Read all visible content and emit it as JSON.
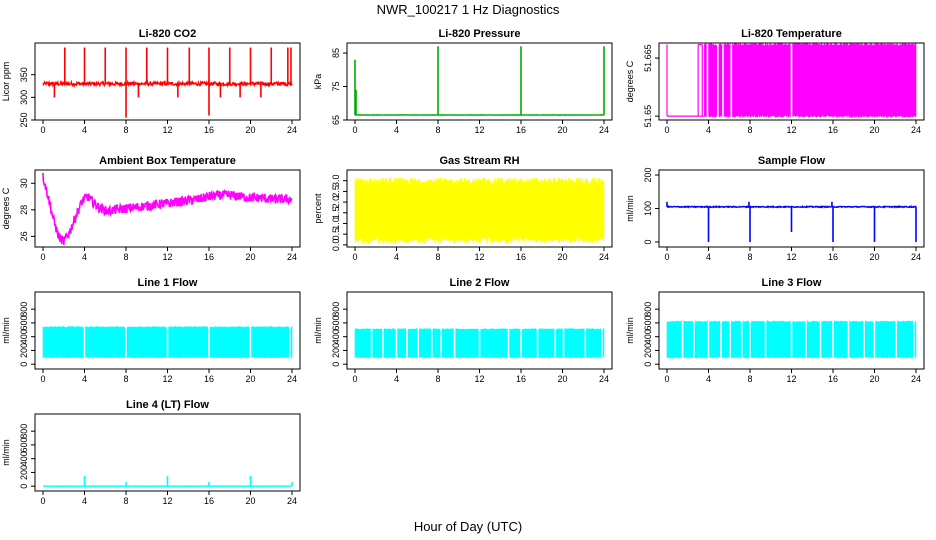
{
  "figure": {
    "title": "NWR_100217  1 Hz Diagnostics",
    "xlabel": "Hour of Day (UTC)"
  },
  "chart_data": [
    {
      "id": "p1",
      "type": "line",
      "title": "Li-820 CO2",
      "ylabel": "Licor ppm",
      "color": "#ff0000",
      "xlim": [
        0,
        24
      ],
      "ylim": [
        250,
        420
      ],
      "xticks": [
        0,
        4,
        8,
        12,
        16,
        20,
        24
      ],
      "yticks": [
        250,
        300,
        350
      ],
      "series": [
        {
          "baseline": 330,
          "noise": 8,
          "spikes": [
            [
              2.1,
              410
            ],
            [
              4.0,
              410
            ],
            [
              6.0,
              410
            ],
            [
              8.0,
              255
            ],
            [
              8.0,
              410
            ],
            [
              10.0,
              410
            ],
            [
              12.0,
              410
            ],
            [
              14.1,
              410
            ],
            [
              16.0,
              260
            ],
            [
              16.0,
              410
            ],
            [
              18.0,
              410
            ],
            [
              20.0,
              410
            ],
            [
              22.0,
              410
            ],
            [
              23.6,
              410
            ],
            [
              23.9,
              410
            ],
            [
              1.1,
              300
            ],
            [
              9.2,
              300
            ],
            [
              13.0,
              300
            ],
            [
              17.1,
              300
            ],
            [
              19.0,
              300
            ],
            [
              21.0,
              300
            ]
          ]
        }
      ]
    },
    {
      "id": "p2",
      "type": "line",
      "title": "Li-820 Pressure",
      "ylabel": "kPa",
      "color": "#00aa00",
      "xlim": [
        0,
        24
      ],
      "ylim": [
        65,
        88
      ],
      "xticks": [
        0,
        4,
        8,
        12,
        16,
        20,
        24
      ],
      "yticks": [
        65,
        75,
        85
      ],
      "series": [
        {
          "baseline": 66.5,
          "noise": 0.1,
          "spikes": [
            [
              0.0,
              83
            ],
            [
              0.1,
              74
            ],
            [
              8.0,
              87
            ],
            [
              16.0,
              87
            ],
            [
              24.0,
              87
            ]
          ]
        }
      ]
    },
    {
      "id": "p3",
      "type": "area",
      "title": "Li-820 Temperature",
      "ylabel": "degrees C",
      "color": "#ff00ff",
      "xlim": [
        0,
        24
      ],
      "ylim": [
        51.649,
        51.6689
      ],
      "xticks": [
        0,
        4,
        8,
        12,
        16,
        20,
        24
      ],
      "yticks": [
        51.65,
        51.665
      ],
      "series": [
        {
          "low": 51.65,
          "high": 51.6685,
          "fill_from": 3.6,
          "early_lines": [
            0.0,
            3.0,
            3.4
          ],
          "gaps": [
            3.9,
            4.9,
            5.4,
            6.2,
            12.0
          ]
        }
      ]
    },
    {
      "id": "p4",
      "type": "line",
      "title": "Ambient Box Temperature",
      "ylabel": "degrees C",
      "color": "#ff00ff",
      "xlim": [
        0,
        24
      ],
      "ylim": [
        25.2,
        31
      ],
      "xticks": [
        0,
        4,
        8,
        12,
        16,
        20,
        24
      ],
      "yticks": [
        26,
        28,
        30
      ],
      "series": [
        {
          "points": [
            [
              0,
              30.5
            ],
            [
              0.5,
              29.0
            ],
            [
              1.0,
              27.3
            ],
            [
              1.5,
              26.0
            ],
            [
              2.0,
              25.6
            ],
            [
              2.6,
              26.4
            ],
            [
              3.2,
              27.6
            ],
            [
              3.8,
              28.7
            ],
            [
              4.3,
              29.0
            ],
            [
              4.8,
              28.6
            ],
            [
              5.5,
              28.1
            ],
            [
              6.2,
              27.9
            ],
            [
              7.0,
              28.0
            ],
            [
              8.0,
              28.1
            ],
            [
              9.0,
              28.2
            ],
            [
              10.0,
              28.3
            ],
            [
              11.0,
              28.4
            ],
            [
              12.0,
              28.5
            ],
            [
              13.0,
              28.6
            ],
            [
              14.0,
              28.7
            ],
            [
              15.0,
              28.8
            ],
            [
              16.0,
              29.0
            ],
            [
              17.0,
              29.1
            ],
            [
              18.0,
              29.1
            ],
            [
              19.0,
              29.0
            ],
            [
              20.0,
              28.9
            ],
            [
              21.0,
              28.9
            ],
            [
              22.0,
              28.8
            ],
            [
              23.0,
              28.8
            ],
            [
              24.0,
              28.8
            ]
          ],
          "noise": 0.35
        }
      ]
    },
    {
      "id": "p5",
      "type": "area",
      "title": "Gas Stream RH",
      "ylabel": "percent",
      "color": "#ffff00",
      "xlim": [
        0,
        24
      ],
      "ylim": [
        -0.1,
        3.5
      ],
      "xticks": [
        0,
        4,
        8,
        12,
        16,
        20,
        24
      ],
      "yticks": [
        0.0,
        0.5,
        1.0,
        1.5,
        2.0,
        2.5,
        3.0
      ],
      "series": [
        {
          "low": 0.3,
          "high": 2.9,
          "noise": 0.35
        }
      ]
    },
    {
      "id": "p6",
      "type": "line",
      "title": "Sample Flow",
      "ylabel": "ml/min",
      "color": "#0000ff",
      "xlim": [
        0,
        24
      ],
      "ylim": [
        -15,
        215
      ],
      "xticks": [
        0,
        4,
        8,
        12,
        16,
        20,
        24
      ],
      "yticks": [
        0,
        100,
        200
      ],
      "series": [
        {
          "baseline": 105,
          "noise": 3,
          "spikes": [
            [
              0.0,
              120
            ],
            [
              4.0,
              0
            ],
            [
              7.9,
              120
            ],
            [
              8.0,
              0
            ],
            [
              12.0,
              30
            ],
            [
              15.9,
              120
            ],
            [
              16.0,
              0
            ],
            [
              20.0,
              0
            ],
            [
              24.0,
              0
            ]
          ]
        }
      ]
    },
    {
      "id": "p7",
      "type": "area",
      "title": "Line 1 Flow",
      "ylabel": "ml/min",
      "color": "#00ffff",
      "xlim": [
        0,
        24
      ],
      "ylim": [
        -70,
        1050
      ],
      "xticks": [
        0,
        4,
        8,
        12,
        16,
        20,
        24
      ],
      "yticks": [
        0,
        200,
        400,
        600,
        800
      ],
      "series": [
        {
          "low": 100,
          "high": 540,
          "gaps": [
            4.0,
            8.0,
            12.0,
            16.0,
            20.0,
            23.8
          ]
        }
      ]
    },
    {
      "id": "p8",
      "type": "area",
      "title": "Line 2 Flow",
      "ylabel": "ml/min",
      "color": "#00ffff",
      "xlim": [
        0,
        24
      ],
      "ylim": [
        -70,
        1050
      ],
      "xticks": [
        0,
        4,
        8,
        12,
        16,
        20,
        24
      ],
      "yticks": [
        0,
        200,
        400,
        600,
        800
      ],
      "series": [
        {
          "low": 100,
          "high": 510,
          "gaps": [
            1.6,
            2.7,
            4.0,
            5.0,
            6.1,
            7.4,
            8.3,
            9.6,
            12.0,
            14.8,
            16.0,
            17.6,
            19.3,
            20.1,
            22.2,
            23.8
          ]
        }
      ]
    },
    {
      "id": "p9",
      "type": "area",
      "title": "Line 3 Flow",
      "ylabel": "ml/min",
      "color": "#00ffff",
      "xlim": [
        0,
        24
      ],
      "ylim": [
        -70,
        1050
      ],
      "xticks": [
        0,
        4,
        8,
        12,
        16,
        20,
        24
      ],
      "yticks": [
        0,
        200,
        400,
        600,
        800
      ],
      "series": [
        {
          "low": 100,
          "high": 620,
          "gaps": [
            1.5,
            2.6,
            4.0,
            5.2,
            6.1,
            7.2,
            8.0,
            9.5,
            12.0,
            13.4,
            14.8,
            16.0,
            17.5,
            19.0,
            20.0,
            22.1,
            23.8
          ]
        }
      ]
    },
    {
      "id": "p10",
      "type": "line",
      "title": "Line 4 (LT) Flow",
      "ylabel": "ml/min",
      "color": "#00ffff",
      "xlim": [
        0,
        24
      ],
      "ylim": [
        -70,
        1050
      ],
      "xticks": [
        0,
        4,
        8,
        12,
        16,
        20,
        24
      ],
      "yticks": [
        0,
        200,
        400,
        600,
        800
      ],
      "series": [
        {
          "baseline": 0,
          "noise": 2,
          "spikes": [
            [
              4.0,
              150
            ],
            [
              8.0,
              60
            ],
            [
              12.0,
              150
            ],
            [
              16.0,
              60
            ],
            [
              20.0,
              150
            ],
            [
              24.0,
              60
            ]
          ]
        }
      ]
    }
  ]
}
